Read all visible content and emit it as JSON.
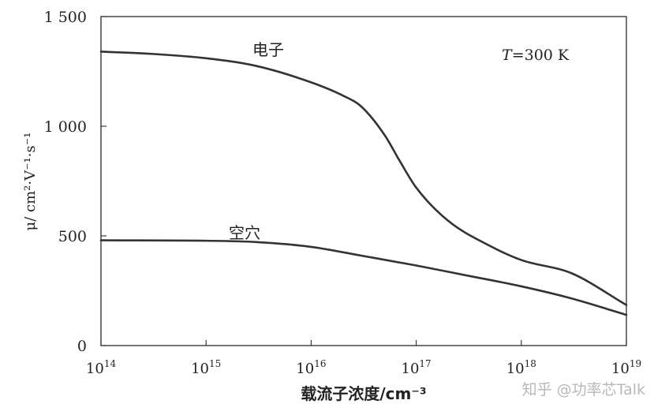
{
  "chart_data": {
    "type": "line",
    "x_scale": "log",
    "xlabel": "载流子浓度/cm⁻³",
    "ylabel": "μ/ cm²·V⁻¹·s⁻¹",
    "xlim": [
      100000000000000.0,
      1e+19
    ],
    "ylim": [
      0,
      1500
    ],
    "x_ticks": [
      100000000000000.0,
      1000000000000000.0,
      1e+16,
      1e+17,
      1e+18,
      1e+19
    ],
    "x_tick_labels": [
      {
        "base": "10",
        "exp": "14"
      },
      {
        "base": "10",
        "exp": "15"
      },
      {
        "base": "10",
        "exp": "16"
      },
      {
        "base": "10",
        "exp": "17"
      },
      {
        "base": "10",
        "exp": "18"
      },
      {
        "base": "10",
        "exp": "19"
      }
    ],
    "y_ticks": [
      0,
      500,
      1000,
      1500
    ],
    "y_tick_labels": [
      "0",
      "500",
      "1 000",
      "1 500"
    ],
    "grid": false,
    "annotation": {
      "var": "T",
      "rest": "=300 K"
    },
    "series": [
      {
        "name": "电子",
        "x": [
          100000000000000.0,
          300000000000000.0,
          1000000000000000.0,
          3000000000000000.0,
          1e+16,
          2e+16,
          3e+16,
          5e+16,
          7e+16,
          1e+17,
          2e+17,
          5e+17,
          1e+18,
          3e+18,
          1e+19
        ],
        "y": [
          1340,
          1330,
          1310,
          1275,
          1200,
          1140,
          1090,
          960,
          840,
          720,
          570,
          455,
          390,
          330,
          185
        ]
      },
      {
        "name": "空穴",
        "x": [
          100000000000000.0,
          1000000000000000.0,
          3000000000000000.0,
          1e+16,
          3e+16,
          1e+17,
          3e+17,
          1e+18,
          3e+18,
          1e+19
        ],
        "y": [
          480,
          478,
          472,
          450,
          410,
          365,
          320,
          270,
          215,
          140
        ]
      }
    ]
  },
  "watermark": "知乎 @功率芯Talk"
}
